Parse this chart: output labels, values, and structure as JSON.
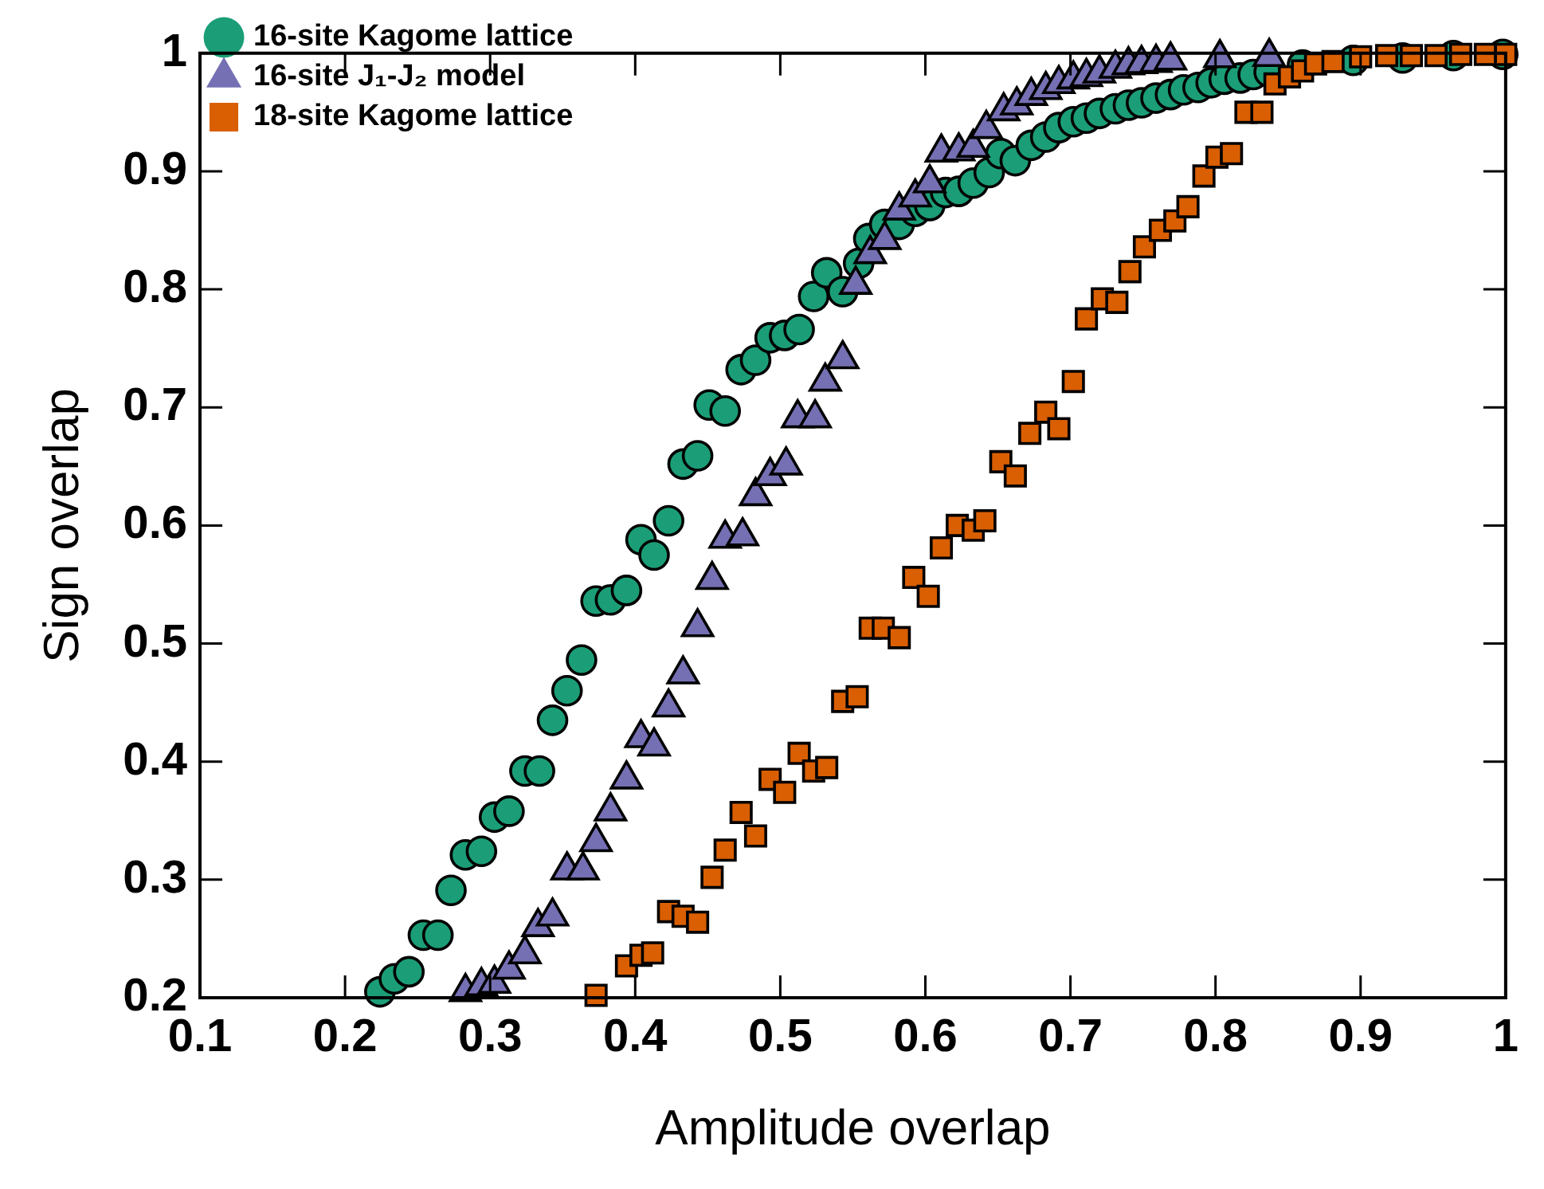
{
  "chart_data": {
    "type": "scatter",
    "xlabel": "Amplitude overlap",
    "ylabel": "Sign overlap",
    "xlim": [
      0.1,
      1
    ],
    "xticks": [
      0.1,
      0.2,
      0.3,
      0.4,
      0.5,
      0.6,
      0.7,
      0.8,
      0.9,
      1
    ],
    "ylim": [
      0.2,
      1
    ],
    "yticks": [
      0.2,
      0.3,
      0.4,
      0.5,
      0.6,
      0.7,
      0.8,
      0.9,
      1
    ],
    "grid": false,
    "legend": "top left",
    "series": [
      {
        "name": "16-site Kagome lattice",
        "color": "#1b9e77",
        "marker": "circle",
        "x": [
          0.224,
          0.234,
          0.244,
          0.254,
          0.264,
          0.273,
          0.283,
          0.294,
          0.303,
          0.313,
          0.324,
          0.334,
          0.343,
          0.353,
          0.363,
          0.373,
          0.383,
          0.394,
          0.404,
          0.413,
          0.423,
          0.433,
          0.443,
          0.451,
          0.462,
          0.473,
          0.483,
          0.493,
          0.503,
          0.513,
          0.523,
          0.532,
          0.543,
          0.554,
          0.561,
          0.572,
          0.582,
          0.593,
          0.603,
          0.614,
          0.623,
          0.633,
          0.644,
          0.652,
          0.662,
          0.673,
          0.683,
          0.692,
          0.702,
          0.711,
          0.72,
          0.731,
          0.74,
          0.749,
          0.759,
          0.769,
          0.778,
          0.788,
          0.797,
          0.806,
          0.817,
          0.826,
          0.837,
          0.86,
          0.895,
          0.929,
          0.964,
          0.998
        ],
        "values": [
          0.205,
          0.216,
          0.222,
          0.253,
          0.253,
          0.291,
          0.321,
          0.324,
          0.353,
          0.358,
          0.392,
          0.392,
          0.435,
          0.46,
          0.486,
          0.536,
          0.537,
          0.545,
          0.588,
          0.575,
          0.604,
          0.652,
          0.659,
          0.702,
          0.697,
          0.732,
          0.74,
          0.759,
          0.761,
          0.766,
          0.794,
          0.814,
          0.798,
          0.822,
          0.843,
          0.855,
          0.855,
          0.866,
          0.871,
          0.882,
          0.883,
          0.89,
          0.899,
          0.915,
          0.909,
          0.922,
          0.929,
          0.937,
          0.942,
          0.945,
          0.949,
          0.953,
          0.956,
          0.958,
          0.962,
          0.965,
          0.969,
          0.971,
          0.975,
          0.978,
          0.979,
          0.982,
          0.984,
          0.99,
          0.994,
          0.996,
          0.998,
          0.999
        ]
      },
      {
        "name": "16-site J₁-J₂ model",
        "color": "#7570b3",
        "marker": "triangle",
        "x": [
          0.283,
          0.294,
          0.303,
          0.313,
          0.324,
          0.333,
          0.343,
          0.353,
          0.364,
          0.373,
          0.383,
          0.394,
          0.404,
          0.413,
          0.423,
          0.433,
          0.443,
          0.453,
          0.462,
          0.474,
          0.483,
          0.493,
          0.504,
          0.512,
          0.524,
          0.531,
          0.543,
          0.552,
          0.562,
          0.572,
          0.582,
          0.593,
          0.603,
          0.611,
          0.623,
          0.633,
          0.642,
          0.654,
          0.663,
          0.673,
          0.683,
          0.692,
          0.702,
          0.711,
          0.72,
          0.731,
          0.74,
          0.749,
          0.759,
          0.769,
          0.803,
          0.837
        ],
        "values": [
          0.205,
          0.21,
          0.212,
          0.224,
          0.237,
          0.26,
          0.269,
          0.308,
          0.308,
          0.332,
          0.358,
          0.385,
          0.42,
          0.413,
          0.446,
          0.474,
          0.514,
          0.554,
          0.589,
          0.591,
          0.625,
          0.642,
          0.651,
          0.691,
          0.691,
          0.722,
          0.741,
          0.804,
          0.83,
          0.842,
          0.867,
          0.878,
          0.89,
          0.916,
          0.917,
          0.92,
          0.936,
          0.951,
          0.956,
          0.964,
          0.969,
          0.974,
          0.978,
          0.98,
          0.983,
          0.987,
          0.99,
          0.991,
          0.992,
          0.994,
          0.996,
          0.997
        ]
      },
      {
        "name": "18-site Kagome lattice",
        "color": "#d95f02",
        "marker": "square",
        "x": [
          0.373,
          0.394,
          0.404,
          0.412,
          0.423,
          0.433,
          0.443,
          0.453,
          0.462,
          0.473,
          0.483,
          0.493,
          0.503,
          0.513,
          0.523,
          0.532,
          0.543,
          0.553,
          0.562,
          0.571,
          0.582,
          0.592,
          0.602,
          0.611,
          0.622,
          0.633,
          0.641,
          0.652,
          0.662,
          0.672,
          0.683,
          0.692,
          0.702,
          0.711,
          0.722,
          0.732,
          0.741,
          0.751,
          0.762,
          0.772,
          0.781,
          0.792,
          0.801,
          0.811,
          0.821,
          0.832,
          0.841,
          0.851,
          0.86,
          0.869,
          0.881,
          0.9,
          0.918,
          0.935,
          0.952,
          0.969,
          0.986,
          1
        ],
        "values": [
          0.202,
          0.227,
          0.236,
          0.238,
          0.273,
          0.269,
          0.264,
          0.302,
          0.325,
          0.357,
          0.337,
          0.385,
          0.374,
          0.407,
          0.392,
          0.395,
          0.451,
          0.455,
          0.513,
          0.513,
          0.505,
          0.556,
          0.54,
          0.581,
          0.6,
          0.596,
          0.604,
          0.654,
          0.642,
          0.678,
          0.696,
          0.682,
          0.722,
          0.775,
          0.792,
          0.789,
          0.815,
          0.836,
          0.85,
          0.858,
          0.87,
          0.896,
          0.912,
          0.915,
          0.95,
          0.95,
          0.974,
          0.98,
          0.985,
          0.991,
          0.993,
          0.997,
          0.998,
          0.998,
          0.998,
          0.999,
          0.999,
          0.999
        ]
      }
    ]
  }
}
